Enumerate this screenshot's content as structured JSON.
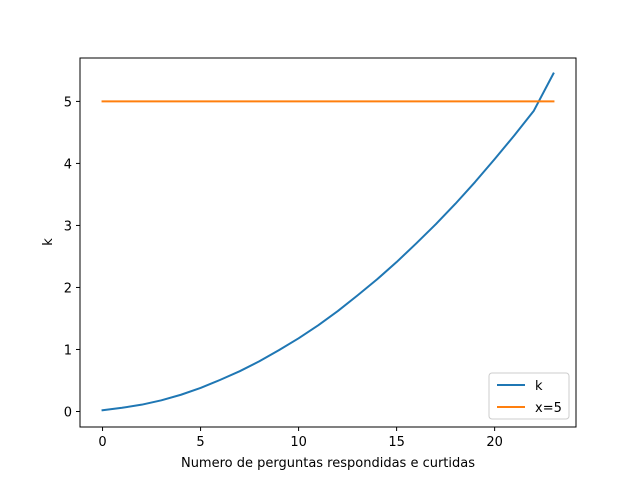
{
  "chart_data": {
    "type": "line",
    "title": "",
    "xlabel": "Numero de perguntas respondidas e curtidas",
    "ylabel": "k",
    "xlim": [
      -1.15,
      24.15
    ],
    "ylim": [
      -0.25,
      5.7
    ],
    "xticks": [
      0,
      5,
      10,
      15,
      20
    ],
    "yticks": [
      0,
      1,
      2,
      3,
      4,
      5
    ],
    "grid": false,
    "legend_position": "lower-right",
    "series": [
      {
        "name": "k",
        "color": "#1f77b4",
        "x": [
          0,
          1,
          2,
          3,
          4,
          5,
          6,
          7,
          8,
          9,
          10,
          11,
          12,
          13,
          14,
          15,
          16,
          17,
          18,
          19,
          20,
          21,
          22,
          23
        ],
        "y": [
          0.02,
          0.06,
          0.11,
          0.18,
          0.27,
          0.38,
          0.51,
          0.65,
          0.81,
          0.99,
          1.18,
          1.39,
          1.62,
          1.87,
          2.13,
          2.41,
          2.71,
          3.02,
          3.35,
          3.7,
          4.07,
          4.45,
          4.85,
          5.45
        ]
      },
      {
        "name": "x=5",
        "color": "#ff7f0e",
        "x": [
          0,
          23
        ],
        "y": [
          5,
          5
        ]
      }
    ]
  }
}
